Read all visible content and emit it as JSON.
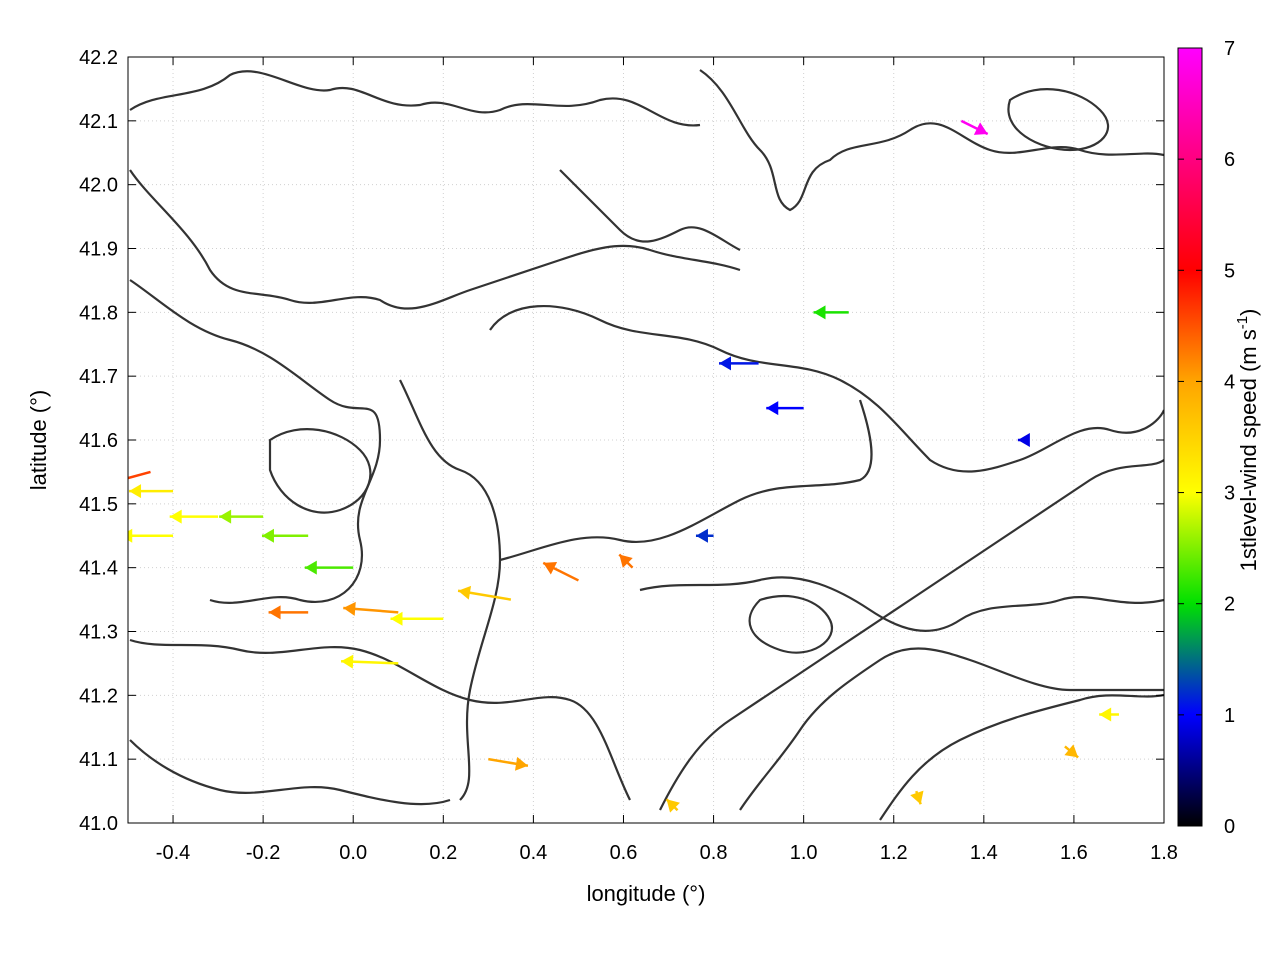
{
  "chart_data": {
    "type": "vector-field",
    "xlabel": "longitude (°)",
    "ylabel": "latitude (°)",
    "colorbar_label": "1stlevel-wind speed (m s",
    "colorbar_label_sup": "-1",
    "colorbar_label_end": ")",
    "xlim": [
      -0.5,
      1.8
    ],
    "ylim": [
      41.0,
      42.2
    ],
    "x_ticks": [
      "-0.4",
      "-0.2",
      "0.0",
      "0.2",
      "0.4",
      "0.6",
      "0.8",
      "1.0",
      "1.2",
      "1.4",
      "1.6",
      "1.8"
    ],
    "x_tick_values": [
      -0.4,
      -0.2,
      0.0,
      0.2,
      0.4,
      0.6,
      0.8,
      1.0,
      1.2,
      1.4,
      1.6,
      1.8
    ],
    "y_ticks": [
      "41.0",
      "41.1",
      "41.2",
      "41.3",
      "41.4",
      "41.5",
      "41.6",
      "41.7",
      "41.8",
      "41.9",
      "42.0",
      "42.1",
      "42.2"
    ],
    "y_tick_values": [
      41.0,
      41.1,
      41.2,
      41.3,
      41.4,
      41.5,
      41.6,
      41.7,
      41.8,
      41.9,
      42.0,
      42.1,
      42.2
    ],
    "colorbar_range": [
      0,
      7
    ],
    "colorbar_ticks": [
      "0",
      "1",
      "2",
      "3",
      "4",
      "5",
      "6",
      "7"
    ],
    "colorbar_tick_values": [
      0,
      1,
      2,
      3,
      4,
      5,
      6,
      7
    ],
    "grid": true,
    "colormap": [
      "#000000",
      "#0000ff",
      "#00e000",
      "#ffff00",
      "#ffa500",
      "#ff0000",
      "#ff00ff"
    ],
    "vectors": [
      {
        "lon": -0.45,
        "lat": 41.55,
        "u": -2.2,
        "v": -0.6,
        "speed": 4.6
      },
      {
        "lon": -0.4,
        "lat": 41.52,
        "u": -2.0,
        "v": 0.0,
        "speed": 3.2
      },
      {
        "lon": -0.4,
        "lat": 41.45,
        "u": -2.4,
        "v": 0.0,
        "speed": 3.0
      },
      {
        "lon": -0.3,
        "lat": 41.48,
        "u": -2.2,
        "v": 0.0,
        "speed": 3.0
      },
      {
        "lon": -0.2,
        "lat": 41.48,
        "u": -2.0,
        "v": 0.0,
        "speed": 2.6
      },
      {
        "lon": -0.1,
        "lat": 41.45,
        "u": -2.1,
        "v": 0.0,
        "speed": 2.5
      },
      {
        "lon": 0.0,
        "lat": 41.4,
        "u": -2.2,
        "v": 0.0,
        "speed": 2.3
      },
      {
        "lon": 0.1,
        "lat": 41.33,
        "u": -2.5,
        "v": 0.2,
        "speed": 4.1
      },
      {
        "lon": -0.1,
        "lat": 41.33,
        "u": -1.8,
        "v": 0.0,
        "speed": 4.3
      },
      {
        "lon": 0.1,
        "lat": 41.25,
        "u": -2.6,
        "v": 0.1,
        "speed": 3.1
      },
      {
        "lon": 0.2,
        "lat": 41.32,
        "u": -2.4,
        "v": 0.0,
        "speed": 3.0
      },
      {
        "lon": 0.35,
        "lat": 41.35,
        "u": -2.4,
        "v": 0.4,
        "speed": 3.6
      },
      {
        "lon": 0.5,
        "lat": 41.38,
        "u": -1.6,
        "v": 0.8,
        "speed": 4.3
      },
      {
        "lon": 0.62,
        "lat": 41.4,
        "u": -0.6,
        "v": 0.6,
        "speed": 4.3
      },
      {
        "lon": 0.3,
        "lat": 41.1,
        "u": 1.8,
        "v": -0.3,
        "speed": 4.0
      },
      {
        "lon": 1.35,
        "lat": 42.1,
        "u": 1.2,
        "v": -0.6,
        "speed": 6.9
      },
      {
        "lon": 1.58,
        "lat": 41.12,
        "u": 0.6,
        "v": -0.5,
        "speed": 3.8
      },
      {
        "lon": 1.7,
        "lat": 41.17,
        "u": -0.9,
        "v": 0.0,
        "speed": 3.1
      },
      {
        "lon": 1.25,
        "lat": 41.05,
        "u": 0.2,
        "v": -0.6,
        "speed": 3.6
      },
      {
        "lon": 0.72,
        "lat": 41.02,
        "u": -0.5,
        "v": 0.5,
        "speed": 3.6
      },
      {
        "lon": 0.9,
        "lat": 41.72,
        "u": -1.8,
        "v": 0.0,
        "speed": 1.1
      },
      {
        "lon": 1.0,
        "lat": 41.65,
        "u": -1.7,
        "v": 0.0,
        "speed": 1.0
      },
      {
        "lon": 1.1,
        "lat": 41.8,
        "u": -1.6,
        "v": 0.0,
        "speed": 2.1
      },
      {
        "lon": 0.8,
        "lat": 41.45,
        "u": -0.8,
        "v": 0.0,
        "speed": 1.2
      },
      {
        "lon": 1.5,
        "lat": 41.6,
        "u": -0.5,
        "v": 0.0,
        "speed": 0.9
      }
    ]
  }
}
